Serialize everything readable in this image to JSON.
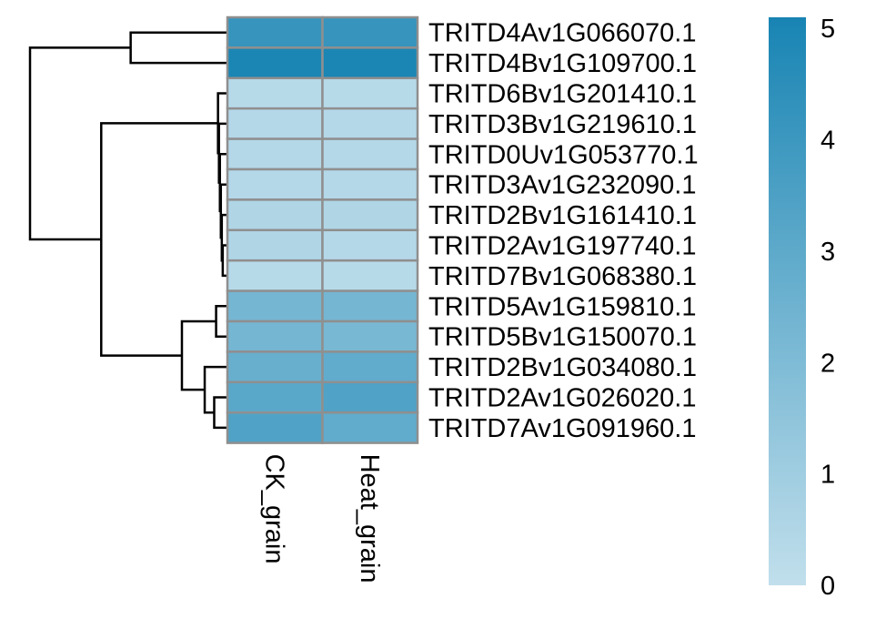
{
  "chart_data": {
    "type": "heatmap",
    "title": "",
    "columns": [
      "CK_grain",
      "Heat_grain"
    ],
    "rows": [
      "TRITD4Av1G066070.1",
      "TRITD4Bv1G109700.1",
      "TRITD6Bv1G201410.1",
      "TRITD3Bv1G219610.1",
      "TRITD0Uv1G053770.1",
      "TRITD3Av1G232090.1",
      "TRITD2Bv1G161410.1",
      "TRITD2Av1G197740.1",
      "TRITD7Bv1G068380.1",
      "TRITD5Av1G159810.1",
      "TRITD5Bv1G150070.1",
      "TRITD2Bv1G034080.1",
      "TRITD2Av1G026020.1",
      "TRITD7Av1G091960.1"
    ],
    "values": [
      [
        4.2,
        4.2
      ],
      [
        5.0,
        5.0
      ],
      [
        0.3,
        0.3
      ],
      [
        0.4,
        0.4
      ],
      [
        0.4,
        0.4
      ],
      [
        0.4,
        0.4
      ],
      [
        0.5,
        0.5
      ],
      [
        0.5,
        0.4
      ],
      [
        0.3,
        0.3
      ],
      [
        2.3,
        2.3
      ],
      [
        2.3,
        2.2
      ],
      [
        2.7,
        2.9
      ],
      [
        3.1,
        3.4
      ],
      [
        3.4,
        2.9
      ]
    ],
    "color_scale": {
      "min": 0,
      "max": 5.1,
      "low_color": "#c1dfec",
      "high_color": "#1884b3",
      "ticks": [
        "0",
        "1",
        "2",
        "3",
        "4",
        "5"
      ]
    },
    "dendrogram": {
      "side": "left",
      "merges": [
        [
          -1,
          -2,
          1.0
        ],
        [
          -8,
          -9,
          0.03
        ],
        [
          -7,
          2,
          0.04
        ],
        [
          -6,
          3,
          0.05
        ],
        [
          -5,
          4,
          0.06
        ],
        [
          -4,
          5,
          0.07
        ],
        [
          -3,
          6,
          0.08
        ],
        [
          -10,
          -11,
          0.1
        ],
        [
          -13,
          -14,
          0.12
        ],
        [
          -12,
          9,
          0.22
        ],
        [
          8,
          10,
          0.46
        ],
        [
          7,
          11,
          1.31
        ],
        [
          1,
          12,
          2.06
        ]
      ],
      "max_height": 2.06
    },
    "cell_border_color": "#8f8f8f"
  }
}
